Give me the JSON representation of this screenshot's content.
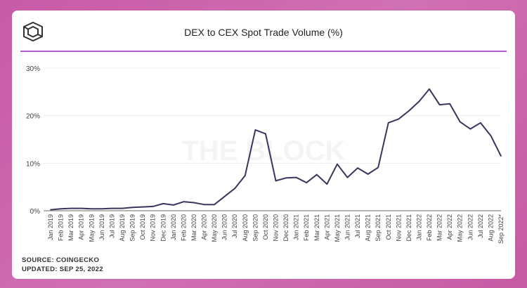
{
  "header": {
    "title": "DEX to CEX Spot Trade Volume (%)",
    "logo": "THE BLOCK cube logo"
  },
  "footer": {
    "source": "SOURCE: COINGECKO",
    "updated": "UPDATED: SEP 25, 2022"
  },
  "watermark": "THE BLOCK",
  "colors": {
    "line": "#38365e",
    "accent": "#b05bd0",
    "background": "#cc62ad"
  },
  "chart_data": {
    "type": "line",
    "title": "DEX to CEX Spot Trade Volume (%)",
    "ylim": [
      0,
      30
    ],
    "yticks": [
      "0%",
      "10%",
      "20%",
      "30%"
    ],
    "grid": true,
    "categories": [
      "Jan 2019",
      "Feb 2019",
      "Mar 2019",
      "Apr 2019",
      "May 2019",
      "Jun 2019",
      "Jul 2019",
      "Aug 2019",
      "Sep 2019",
      "Oct 2019",
      "Nov 2019",
      "Dec 2019",
      "Jan 2020",
      "Feb 2020",
      "Mar 2020",
      "Apr 2020",
      "May 2020",
      "Jun 2020",
      "Jul 2020",
      "Aug 2020",
      "Sep 2020",
      "Oct 2020",
      "Nov 2020",
      "Dec 2020",
      "Jan 2021",
      "Feb 2021",
      "Mar 2021",
      "Apr 2021",
      "May 2021",
      "Jun 2021",
      "Jul 2021",
      "Aug 2021",
      "Sep 2021",
      "Oct 2021",
      "Nov 2021",
      "Dec 2021",
      "Jan 2022",
      "Feb 2022",
      "Mar 2022",
      "Apr 2022",
      "May 2022",
      "Jun 2022",
      "Jul 2022",
      "Aug 2022",
      "Sep 2022*"
    ],
    "values": [
      0.2,
      0.4,
      0.5,
      0.5,
      0.4,
      0.4,
      0.5,
      0.5,
      0.7,
      0.8,
      0.9,
      1.5,
      1.2,
      1.9,
      1.7,
      1.3,
      1.3,
      3.0,
      4.7,
      7.4,
      17.0,
      16.2,
      6.3,
      6.9,
      7.0,
      5.9,
      7.6,
      5.6,
      9.8,
      7.0,
      9.0,
      7.7,
      9.1,
      18.5,
      19.3,
      21.0,
      23.0,
      25.6,
      22.3,
      22.5,
      18.7,
      17.2,
      18.5,
      15.8,
      11.5
    ]
  }
}
